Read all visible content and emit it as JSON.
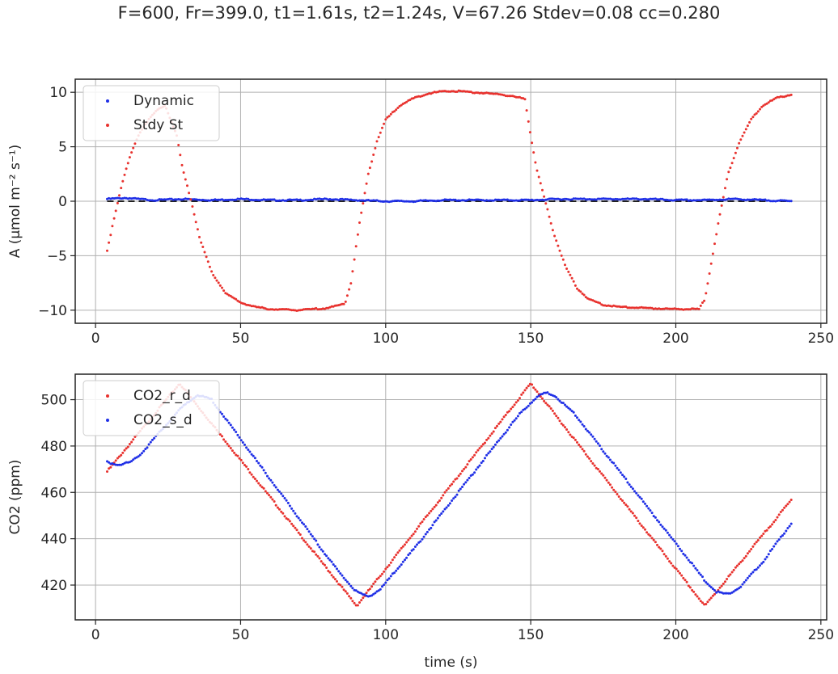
{
  "suptitle": "F=600, Fr=399.0, t1=1.61s, t2=1.24s, V=67.26 Stdev=0.08 cc=0.280",
  "colors": {
    "red": "#e8322e",
    "blue": "#1f2fe6",
    "grid": "#b0b0b0",
    "dashed": "#222222"
  },
  "chart_data": [
    {
      "type": "scatter",
      "ylabel": "A (μmol m⁻² s⁻¹)",
      "xlabel": "",
      "xlim": [
        -7,
        252
      ],
      "ylim": [
        -11.2,
        11.2
      ],
      "xticks": [
        0,
        50,
        100,
        150,
        200,
        250
      ],
      "yticks": [
        -10,
        -5,
        0,
        5,
        10
      ],
      "grid": true,
      "legend_position": "upper-left",
      "reference_line": {
        "y": 0,
        "style": "dashed"
      },
      "series": [
        {
          "name": "Dynamic",
          "color": "blue",
          "x": [
            4,
            10,
            20,
            30,
            40,
            50,
            60,
            70,
            80,
            90,
            100,
            110,
            120,
            130,
            140,
            150,
            160,
            170,
            180,
            190,
            200,
            210,
            220,
            230,
            240
          ],
          "y": [
            0.2,
            0.3,
            0.1,
            0.2,
            0.1,
            0.2,
            0.1,
            0.1,
            0.2,
            0.1,
            0.0,
            0.0,
            0.1,
            0.1,
            0.1,
            0.1,
            0.2,
            0.2,
            0.2,
            0.2,
            0.1,
            0.1,
            0.2,
            0.1,
            0.0
          ]
        },
        {
          "name": "Stdy St",
          "color": "red",
          "x": [
            4,
            6,
            9,
            12,
            15,
            18,
            21,
            24,
            28,
            30,
            33,
            36,
            40,
            45,
            50,
            55,
            60,
            70,
            80,
            86,
            88,
            91,
            94,
            97,
            100,
            105,
            110,
            115,
            120,
            125,
            130,
            140,
            148,
            150,
            152,
            155,
            158,
            162,
            166,
            170,
            175,
            180,
            190,
            200,
            208,
            210,
            212,
            215,
            218,
            222,
            226,
            230,
            235,
            240
          ],
          "y": [
            -4.6,
            -2.0,
            1.5,
            4.2,
            6.2,
            7.4,
            8.3,
            8.8,
            6.0,
            3.0,
            0.0,
            -3.5,
            -6.5,
            -8.5,
            -9.3,
            -9.7,
            -9.9,
            -10.0,
            -9.8,
            -9.4,
            -7.5,
            -2.0,
            2.5,
            5.5,
            7.5,
            8.8,
            9.5,
            9.9,
            10.1,
            10.1,
            10.0,
            9.8,
            9.4,
            6.0,
            3.0,
            0.0,
            -3.0,
            -6.0,
            -8.0,
            -9.0,
            -9.5,
            -9.7,
            -9.8,
            -9.9,
            -9.9,
            -9.0,
            -6.0,
            -1.5,
            2.5,
            5.5,
            7.5,
            8.8,
            9.5,
            9.8
          ]
        }
      ]
    },
    {
      "type": "scatter",
      "ylabel": "CO2 (ppm)",
      "xlabel": "time (s)",
      "xlim": [
        -7,
        252
      ],
      "ylim": [
        405,
        511
      ],
      "xticks": [
        0,
        50,
        100,
        150,
        200,
        250
      ],
      "yticks": [
        420,
        440,
        460,
        480,
        500
      ],
      "grid": true,
      "legend_position": "upper-left",
      "series": [
        {
          "name": "CO2_r_d",
          "color": "red",
          "x": [
            4,
            29,
            90,
            150,
            210,
            240
          ],
          "y": [
            469,
            507,
            411,
            507,
            411,
            457
          ]
        },
        {
          "name": "CO2_s_d",
          "color": "blue",
          "x": [
            4,
            8,
            12,
            16,
            20,
            25,
            30,
            35,
            40,
            50,
            60,
            70,
            80,
            85,
            90,
            94,
            98,
            102,
            110,
            120,
            130,
            140,
            147,
            152,
            155,
            158,
            165,
            175,
            185,
            195,
            205,
            210,
            214,
            218,
            222,
            230,
            240
          ],
          "y": [
            473,
            472,
            473,
            477,
            483,
            490,
            497,
            502,
            500,
            483,
            466,
            449,
            432,
            424,
            417,
            415,
            418,
            424,
            436,
            452,
            468,
            484,
            495,
            501,
            503,
            502,
            494,
            478,
            462,
            446,
            430,
            422,
            417,
            416,
            419,
            430,
            447
          ]
        }
      ]
    }
  ]
}
